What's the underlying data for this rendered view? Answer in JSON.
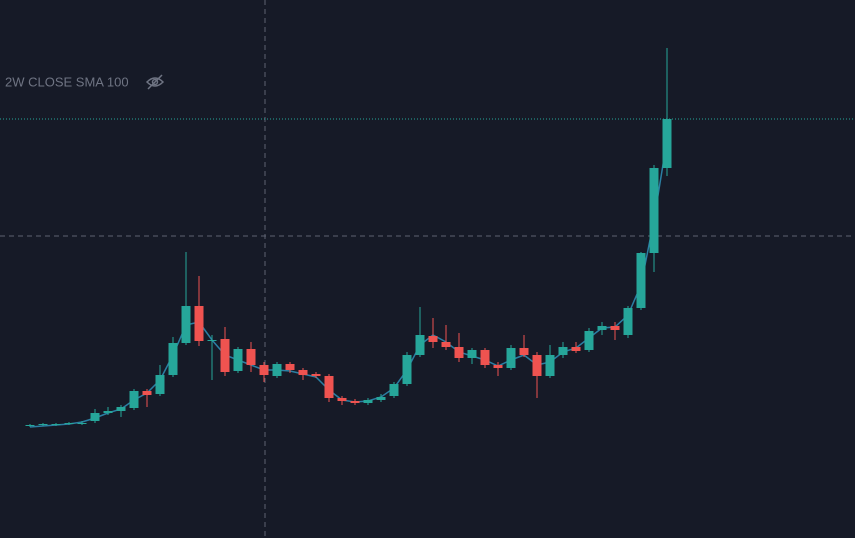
{
  "chart_data": {
    "type": "candlestick",
    "open": [
      112,
      113,
      113,
      114,
      114,
      117,
      125,
      127,
      130,
      147,
      144,
      163,
      195,
      232,
      197,
      199,
      167,
      189,
      173,
      162,
      174,
      168,
      164,
      162,
      140,
      137,
      135,
      138,
      142,
      154,
      183,
      202,
      196,
      191,
      180,
      188,
      173,
      170,
      190,
      183,
      162,
      183,
      191,
      188,
      208,
      212,
      203,
      230,
      285,
      370
    ],
    "high": [
      114,
      115,
      115,
      116,
      117,
      129,
      131,
      133,
      149,
      149,
      173,
      201,
      286,
      262,
      203,
      211,
      191,
      196,
      176,
      176,
      176,
      170,
      166,
      164,
      142,
      139,
      140,
      144,
      156,
      186,
      231,
      220,
      213,
      205,
      190,
      190,
      176,
      193,
      203,
      186,
      193,
      196,
      196,
      210,
      216,
      216,
      232,
      286,
      373,
      490
    ],
    "low": [
      111,
      112,
      112,
      113,
      113,
      115,
      123,
      121,
      128,
      131,
      142,
      161,
      193,
      192,
      158,
      162,
      165,
      166,
      156,
      160,
      165,
      158,
      160,
      136,
      133,
      133,
      133,
      136,
      140,
      152,
      181,
      190,
      188,
      176,
      174,
      170,
      162,
      168,
      181,
      140,
      160,
      180,
      185,
      186,
      203,
      198,
      200,
      228,
      266,
      362
    ],
    "close": [
      113,
      114,
      114,
      115,
      115,
      125,
      127,
      131,
      147,
      143,
      163,
      195,
      232,
      197,
      198,
      166,
      189,
      173,
      163,
      174,
      168,
      163,
      162,
      140,
      137,
      135,
      138,
      141,
      154,
      183,
      203,
      196,
      191,
      180,
      188,
      173,
      170,
      190,
      183,
      162,
      183,
      191,
      187,
      207,
      212,
      208,
      230,
      285,
      370,
      419
    ],
    "up_color": "#26a69a",
    "down_color": "#ef5350",
    "indicator": {
      "name": "2W CLOSE SMA 100",
      "color": "#2b7fa3",
      "values": [
        111,
        112,
        113,
        114,
        116,
        120,
        125,
        129,
        138,
        145,
        158,
        183,
        213,
        216,
        198,
        183,
        178,
        173,
        168,
        168,
        167,
        164,
        161,
        148,
        138,
        136,
        137,
        141,
        150,
        168,
        193,
        203,
        196,
        186,
        182,
        178,
        172,
        178,
        183,
        173,
        176,
        186,
        190,
        200,
        210,
        211,
        223,
        253,
        318,
        398
      ]
    },
    "ylim": [
      0,
      538
    ]
  }
}
